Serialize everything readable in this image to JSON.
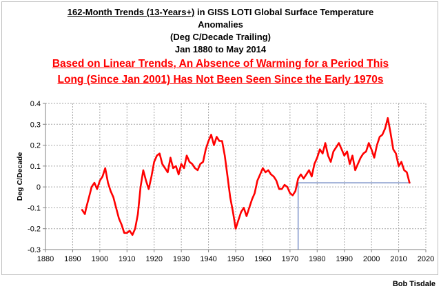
{
  "title_lines": [
    "162-Month Trends (13-Years+) in GISS LOTI Global Surface Temperature",
    "Anomalies",
    "(Deg C/Decade Trailing)",
    "Jan 1880 to May 2014"
  ],
  "title_underlined_part": "162-Month Trends (13-Years+)",
  "title_rest_part": " in GISS LOTI Global Surface Temperature",
  "subtitle_lines": [
    "Based on Linear Trends, An Absence of Warming for a Period This",
    "Long (Since Jan 2001) Has Not Been Seen Since the Early 1970s"
  ],
  "credit": "Bob Tisdale",
  "colors": {
    "series": "#ff0000",
    "reference_line": "#3355aa",
    "grid": "#a6a6a6",
    "axis": "#808080",
    "subtitle": "#ff0000"
  },
  "chart_data": {
    "type": "line",
    "ylabel": "Deg C/Decade",
    "xlim": [
      1880,
      2020
    ],
    "ylim": [
      -0.3,
      0.4
    ],
    "x_ticks": [
      "1880",
      "1890",
      "1900",
      "1910",
      "1920",
      "1930",
      "1940",
      "1950",
      "1960",
      "1970",
      "1980",
      "1990",
      "2000",
      "2010",
      "2020"
    ],
    "y_ticks": [
      "-0.3",
      "-0.2",
      "-0.1",
      "0",
      "0.1",
      "0.2",
      "0.3",
      "0.4"
    ],
    "grid": true,
    "legend": "none",
    "reference_line": {
      "x_from": 1973,
      "x_to": 2014.4,
      "y": 0.02
    },
    "series": [
      {
        "x": [
          1893.5,
          1894.5,
          1895,
          1896,
          1897,
          1898,
          1899,
          1900,
          1901,
          1902,
          1903,
          1904,
          1905,
          1906,
          1907,
          1908,
          1909,
          1910,
          1911,
          1912,
          1913,
          1914,
          1915,
          1916,
          1917,
          1918,
          1919,
          1920,
          1921,
          1922,
          1923,
          1924,
          1925,
          1926,
          1927,
          1928,
          1929,
          1930,
          1931,
          1932,
          1933,
          1934,
          1935,
          1936,
          1937,
          1938,
          1939,
          1940,
          1941,
          1942,
          1943,
          1944,
          1945,
          1946,
          1947,
          1948,
          1949,
          1950,
          1951,
          1952,
          1953,
          1954,
          1955,
          1956,
          1957,
          1958,
          1959,
          1960,
          1961,
          1962,
          1963,
          1964,
          1965,
          1966,
          1967,
          1968,
          1969,
          1970,
          1971,
          1972,
          1973,
          1974,
          1975,
          1976,
          1977,
          1978,
          1979,
          1980,
          1981,
          1982,
          1983,
          1984,
          1985,
          1986,
          1987,
          1988,
          1989,
          1990,
          1991,
          1992,
          1993,
          1994,
          1995,
          1996,
          1997,
          1998,
          1999,
          2000,
          2001,
          2002,
          2003,
          2004,
          2005,
          2006,
          2007,
          2008,
          2009,
          2010,
          2011,
          2012,
          2013,
          2014
        ],
        "values": [
          -0.11,
          -0.13,
          -0.1,
          -0.05,
          0.0,
          0.02,
          -0.01,
          0.03,
          0.05,
          0.09,
          0.02,
          -0.02,
          -0.05,
          -0.1,
          -0.15,
          -0.18,
          -0.22,
          -0.22,
          -0.21,
          -0.23,
          -0.2,
          -0.13,
          0.0,
          0.08,
          0.03,
          -0.01,
          0.05,
          0.12,
          0.15,
          0.16,
          0.11,
          0.09,
          0.07,
          0.14,
          0.09,
          0.1,
          0.06,
          0.11,
          0.09,
          0.15,
          0.12,
          0.11,
          0.09,
          0.08,
          0.11,
          0.12,
          0.18,
          0.22,
          0.25,
          0.2,
          0.24,
          0.22,
          0.22,
          0.15,
          0.05,
          -0.05,
          -0.12,
          -0.2,
          -0.16,
          -0.12,
          -0.1,
          -0.14,
          -0.1,
          -0.06,
          -0.03,
          0.03,
          0.06,
          0.09,
          0.07,
          0.08,
          0.06,
          0.05,
          0.03,
          -0.01,
          -0.01,
          0.01,
          0.0,
          -0.03,
          -0.04,
          -0.02,
          0.04,
          0.06,
          0.04,
          0.06,
          0.08,
          0.05,
          0.11,
          0.14,
          0.18,
          0.16,
          0.21,
          0.15,
          0.12,
          0.17,
          0.19,
          0.21,
          0.18,
          0.15,
          0.17,
          0.11,
          0.15,
          0.08,
          0.11,
          0.14,
          0.16,
          0.17,
          0.21,
          0.18,
          0.14,
          0.2,
          0.24,
          0.25,
          0.28,
          0.33,
          0.26,
          0.18,
          0.16,
          0.1,
          0.12,
          0.08,
          0.07,
          0.02
        ]
      }
    ]
  }
}
